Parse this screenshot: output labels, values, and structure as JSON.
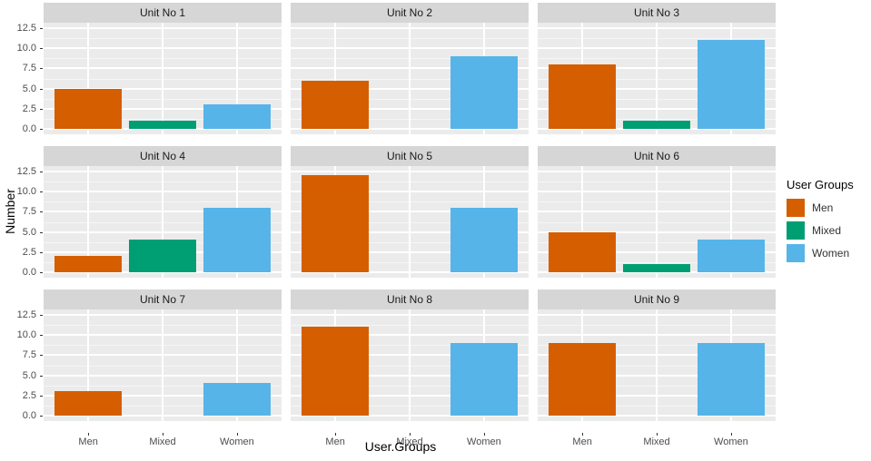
{
  "chart_data": {
    "type": "bar",
    "title": "",
    "xlabel": "User.Groups",
    "ylabel": "Number",
    "categories": [
      "Men",
      "Mixed",
      "Women"
    ],
    "y_ticks": [
      "0.0",
      "2.5",
      "5.0",
      "7.5",
      "10.0",
      "12.5"
    ],
    "ylim": [
      0,
      13
    ],
    "grid": "on",
    "facet_layout": "3x3",
    "legend": {
      "title": "User Groups",
      "position": "right",
      "entries": [
        "Men",
        "Mixed",
        "Women"
      ]
    },
    "colors": {
      "Men": "#D55E00",
      "Mixed": "#009E73",
      "Women": "#56B4E9",
      "panel_bg": "#EBEBEB",
      "strip_bg": "#D6D6D6",
      "gridline": "#FFFFFF"
    },
    "facets": [
      {
        "label": "Unit No 1",
        "values": [
          5,
          1,
          3
        ]
      },
      {
        "label": "Unit No 2",
        "values": [
          6,
          0,
          9
        ]
      },
      {
        "label": "Unit No 3",
        "values": [
          8,
          1,
          11
        ]
      },
      {
        "label": "Unit No 4",
        "values": [
          2,
          4,
          8
        ]
      },
      {
        "label": "Unit No 5",
        "values": [
          12,
          0,
          8
        ]
      },
      {
        "label": "Unit No 6",
        "values": [
          5,
          1,
          4
        ]
      },
      {
        "label": "Unit No 7",
        "values": [
          3,
          0,
          4
        ]
      },
      {
        "label": "Unit No 8",
        "values": [
          11,
          0,
          9
        ]
      },
      {
        "label": "Unit No 9",
        "values": [
          9,
          0,
          9
        ]
      }
    ]
  }
}
